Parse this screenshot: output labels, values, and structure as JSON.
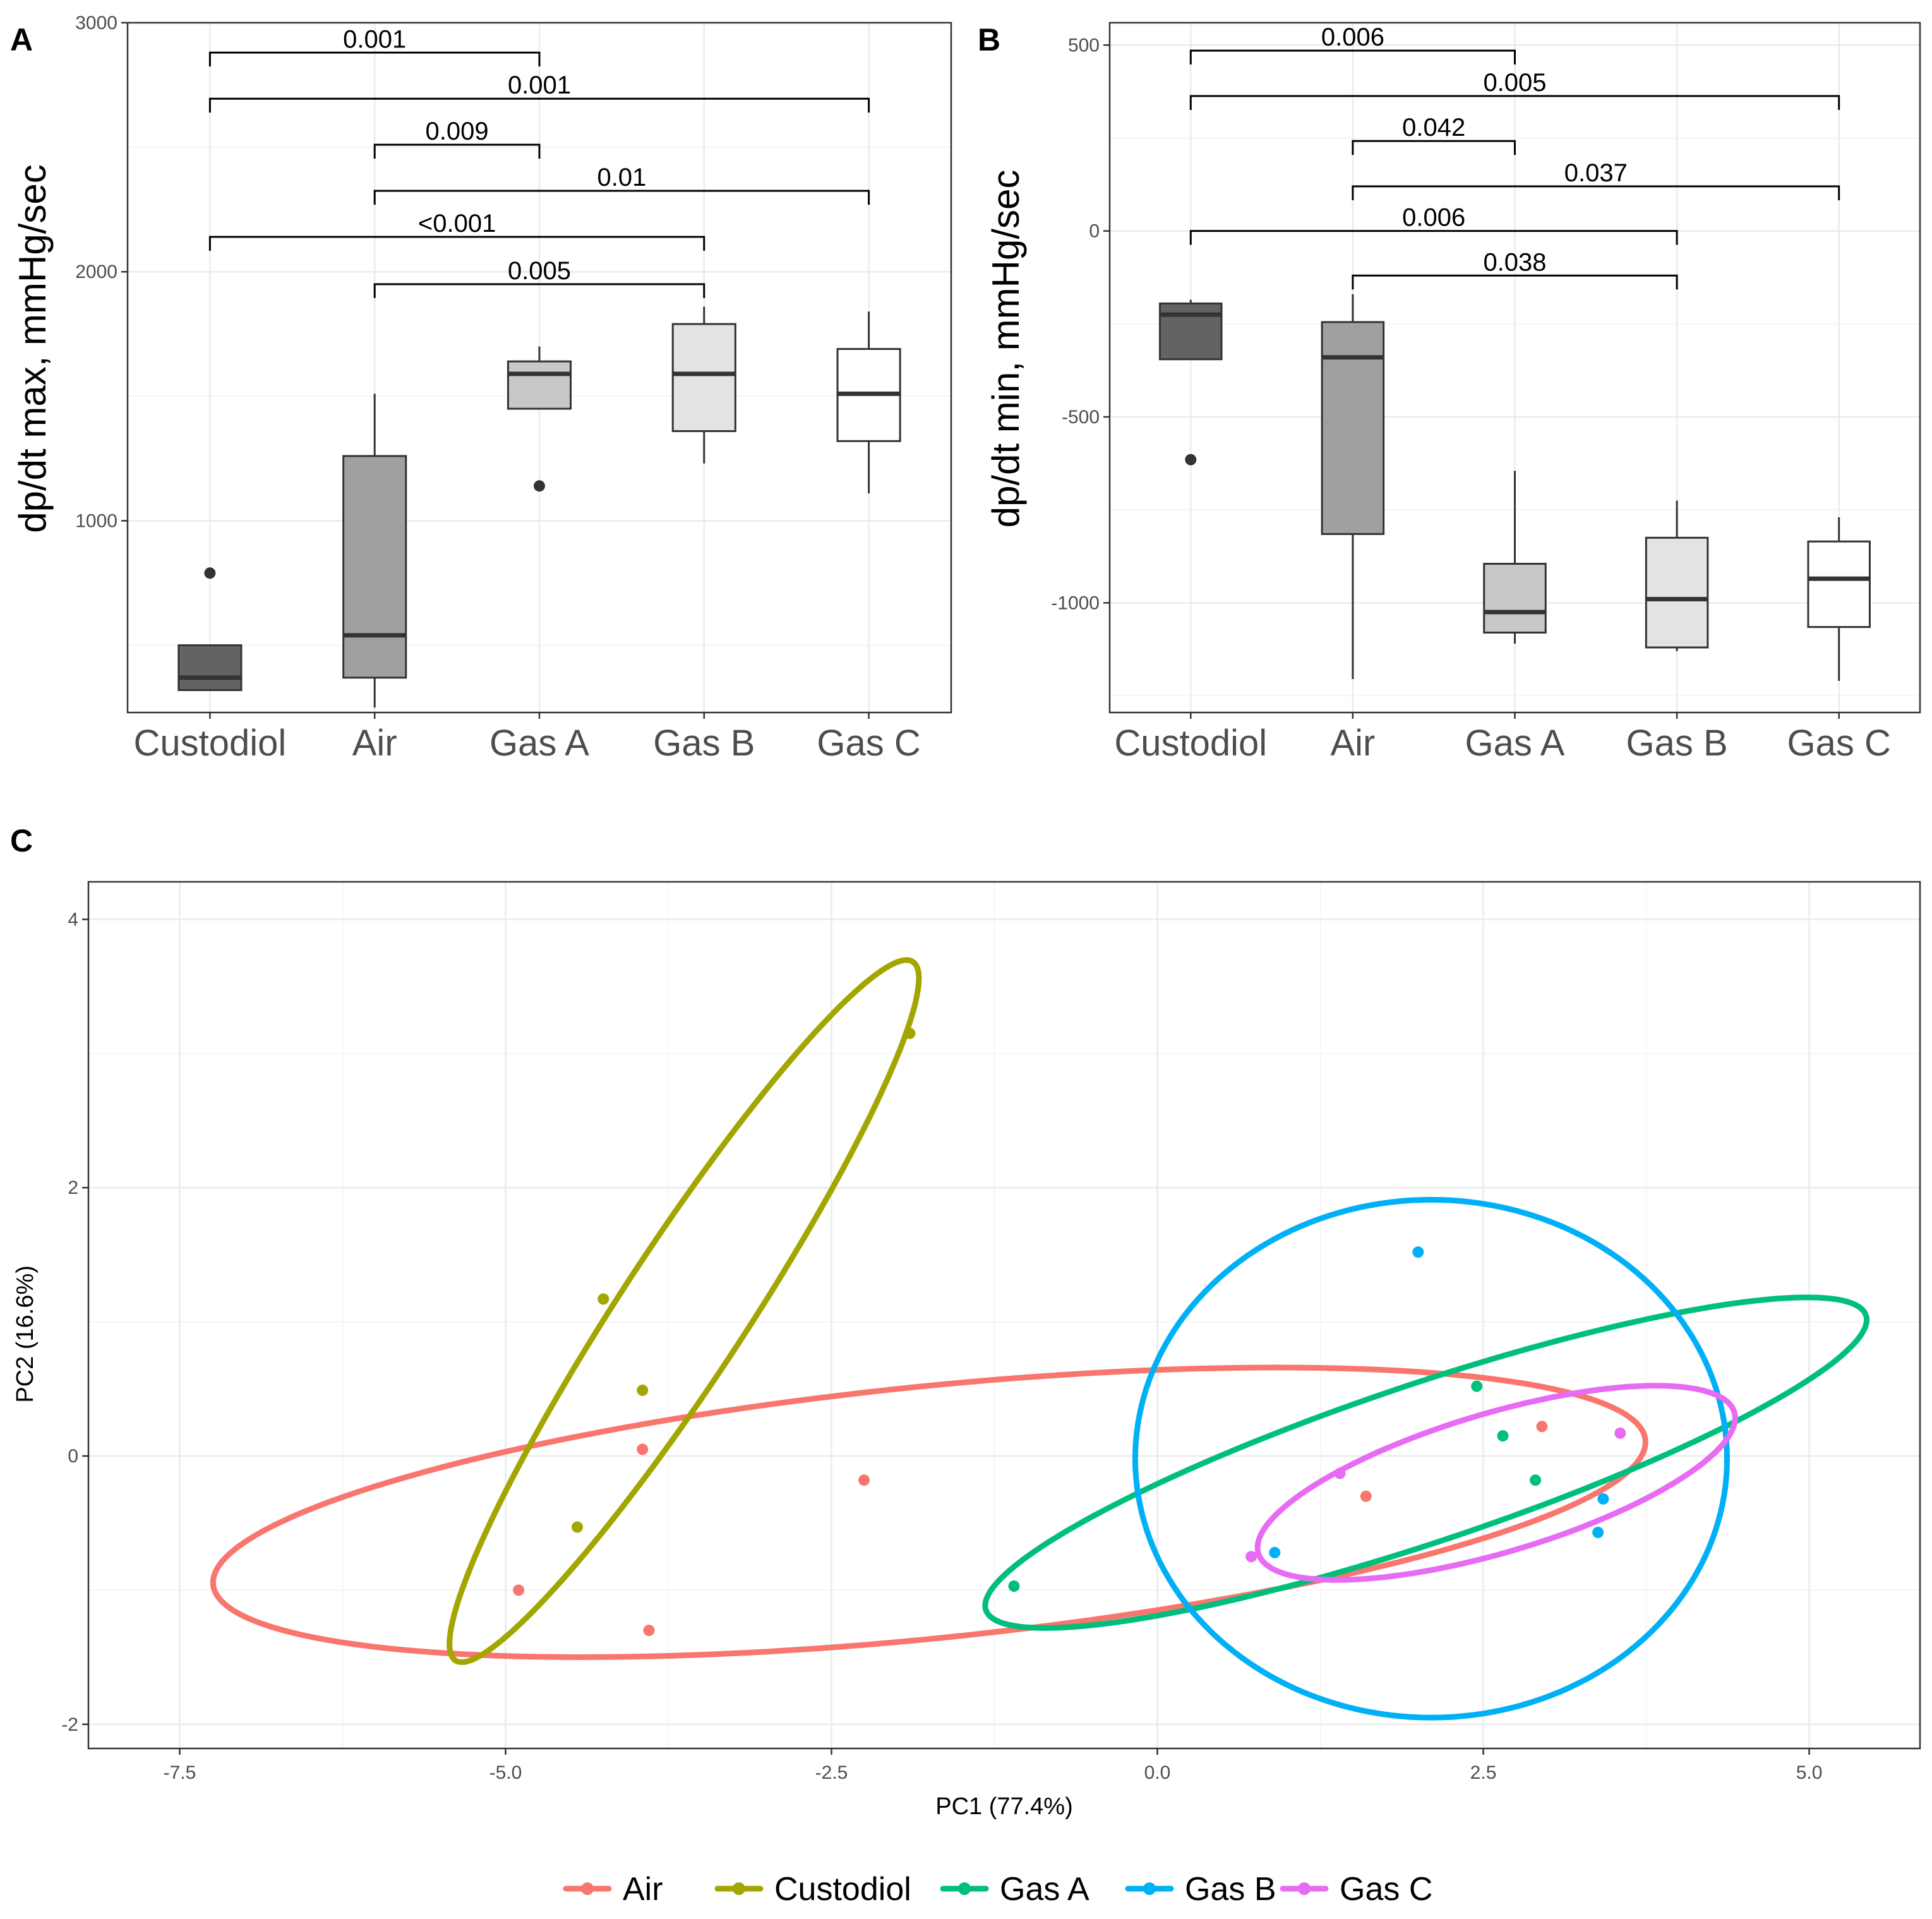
{
  "chart_data": [
    {
      "id": "A",
      "panel_label": "A",
      "type": "box",
      "ylabel": "dp/dt max, mmHg/sec",
      "categories": [
        "Custodiol",
        "Air",
        "Gas A",
        "Gas B",
        "Gas C"
      ],
      "ylim": [
        230,
        3000
      ],
      "yticks": [
        1000,
        2000,
        3000
      ],
      "ytick_labels": [
        "1000",
        "2000",
        "3000"
      ],
      "boxes": [
        {
          "category": "Custodiol",
          "fill": "#636363",
          "low": 320,
          "q1": 320,
          "median": 370,
          "q3": 500,
          "high": 500,
          "outliers": [
            790
          ]
        },
        {
          "category": "Air",
          "fill": "#a0a0a0",
          "low": 250,
          "q1": 370,
          "median": 540,
          "q3": 1260,
          "high": 1510,
          "outliers": []
        },
        {
          "category": "Gas A",
          "fill": "#c8c8c8",
          "low": 1450,
          "q1": 1450,
          "median": 1590,
          "q3": 1640,
          "high": 1700,
          "outliers": [
            1140
          ]
        },
        {
          "category": "Gas B",
          "fill": "#e3e3e3",
          "low": 1230,
          "q1": 1360,
          "median": 1590,
          "q3": 1790,
          "high": 1860,
          "outliers": []
        },
        {
          "category": "Gas C",
          "fill": "#ffffff",
          "low": 1110,
          "q1": 1320,
          "median": 1510,
          "q3": 1690,
          "high": 1840,
          "outliers": []
        }
      ],
      "brackets": [
        {
          "from": "Custodiol",
          "to": "Gas A",
          "y": 2880,
          "label": "0.001"
        },
        {
          "from": "Custodiol",
          "to": "Gas C",
          "y": 2695,
          "label": "0.001"
        },
        {
          "from": "Air",
          "to": "Gas A",
          "y": 2510,
          "label": "0.009"
        },
        {
          "from": "Air",
          "to": "Gas C",
          "y": 2325,
          "label": "0.01"
        },
        {
          "from": "Custodiol",
          "to": "Gas B",
          "y": 2140,
          "label": "<0.001"
        },
        {
          "from": "Air",
          "to": "Gas B",
          "y": 1950,
          "label": "0.005"
        }
      ]
    },
    {
      "id": "B",
      "panel_label": "B",
      "type": "box",
      "ylabel": "dp/dt min, mmHg/sec",
      "categories": [
        "Custodiol",
        "Air",
        "Gas A",
        "Gas B",
        "Gas C"
      ],
      "ylim": [
        -1295,
        560
      ],
      "yticks": [
        -1000,
        -500,
        0,
        500
      ],
      "ytick_labels": [
        "-1000",
        "-500",
        "0",
        "500"
      ],
      "boxes": [
        {
          "category": "Custodiol",
          "fill": "#636363",
          "low": -345,
          "q1": -345,
          "median": -225,
          "q3": -195,
          "high": -185,
          "outliers": [
            -615
          ]
        },
        {
          "category": "Air",
          "fill": "#a0a0a0",
          "low": -1205,
          "q1": -815,
          "median": -340,
          "q3": -245,
          "high": -170,
          "outliers": []
        },
        {
          "category": "Gas A",
          "fill": "#c8c8c8",
          "low": -1110,
          "q1": -1080,
          "median": -1025,
          "q3": -895,
          "high": -645,
          "outliers": []
        },
        {
          "category": "Gas B",
          "fill": "#e3e3e3",
          "low": -1130,
          "q1": -1120,
          "median": -990,
          "q3": -825,
          "high": -725,
          "outliers": []
        },
        {
          "category": "Gas C",
          "fill": "#ffffff",
          "low": -1210,
          "q1": -1065,
          "median": -935,
          "q3": -835,
          "high": -770,
          "outliers": []
        }
      ],
      "brackets": [
        {
          "from": "Custodiol",
          "to": "Gas A",
          "y": 485,
          "label": "0.006"
        },
        {
          "from": "Custodiol",
          "to": "Gas C",
          "y": 363,
          "label": "0.005"
        },
        {
          "from": "Air",
          "to": "Gas A",
          "y": 242,
          "label": "0.042"
        },
        {
          "from": "Air",
          "to": "Gas C",
          "y": 120,
          "label": "0.037"
        },
        {
          "from": "Custodiol",
          "to": "Gas B",
          "y": 0,
          "label": "0.006"
        },
        {
          "from": "Air",
          "to": "Gas B",
          "y": -120,
          "label": "0.038"
        }
      ]
    },
    {
      "id": "C",
      "panel_label": "C",
      "type": "scatter",
      "xlabel": "PC1 (77.4%)",
      "ylabel": "PC2 (16.6%)",
      "xlim": [
        -8.2,
        5.85
      ],
      "ylim": [
        -2.18,
        4.28
      ],
      "xticks": [
        -7.5,
        -5.0,
        -2.5,
        0.0,
        2.5,
        5.0
      ],
      "xtick_labels": [
        "-7.5",
        "-5.0",
        "-2.5",
        "0.0",
        "2.5",
        "5.0"
      ],
      "yticks": [
        -2,
        0,
        2,
        4
      ],
      "ytick_labels": [
        "-2",
        "0",
        "2",
        "4"
      ],
      "legend_position": "bottom",
      "series": [
        {
          "name": "Air",
          "color": "#F8766D",
          "points": [
            [
              -4.9,
              -1.0
            ],
            [
              -3.95,
              0.05
            ],
            [
              -3.9,
              -1.3
            ],
            [
              -2.25,
              -0.18
            ],
            [
              1.6,
              -0.3
            ],
            [
              2.95,
              0.22
            ]
          ],
          "ellipse": {
            "center": [
              -1.75,
              -0.42
            ],
            "rx": 5.52,
            "ry": 0.94,
            "angle": 5.6
          }
        },
        {
          "name": "Custodiol",
          "color": "#A3A500",
          "points": [
            [
              -4.45,
              -0.53
            ],
            [
              -4.25,
              1.17
            ],
            [
              -3.95,
              0.49
            ],
            [
              -1.9,
              3.15
            ]
          ],
          "ellipse": {
            "center": [
              -3.63,
              1.08
            ],
            "rx": 3.14,
            "ry": 0.48,
            "angle": 56
          }
        },
        {
          "name": "Gas A",
          "color": "#00BF7D",
          "points": [
            [
              -1.1,
              -0.97
            ],
            [
              2.45,
              0.52
            ],
            [
              2.65,
              0.15
            ],
            [
              2.9,
              -0.18
            ]
          ],
          "ellipse": {
            "center": [
              2.06,
              -0.05
            ],
            "rx": 3.55,
            "ry": 0.59,
            "angle": 18
          }
        },
        {
          "name": "Gas B",
          "color": "#00B0F6",
          "points": [
            [
              0.9,
              -0.72
            ],
            [
              2.0,
              1.52
            ],
            [
              3.38,
              -0.57
            ],
            [
              3.42,
              -0.32
            ]
          ],
          "ellipse": {
            "center": [
              2.1,
              -0.02
            ],
            "rx": 2.27,
            "ry": 1.93,
            "angle": 0
          }
        },
        {
          "name": "Gas C",
          "color": "#E76BF3",
          "points": [
            [
              0.72,
              -0.75
            ],
            [
              1.4,
              -0.13
            ],
            [
              3.55,
              0.17
            ]
          ],
          "ellipse": {
            "center": [
              2.6,
              -0.2
            ],
            "rx": 1.9,
            "ry": 0.52,
            "angle": 16
          }
        }
      ]
    }
  ]
}
